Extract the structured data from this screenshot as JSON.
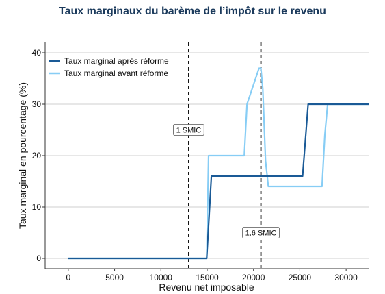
{
  "chart_data": {
    "type": "line",
    "title": "Taux marginaux du barème de l’impôt sur le revenu",
    "xlabel": "Revenu net imposable",
    "ylabel": "Taux marginal en pourcentage (%)",
    "xlim": [
      -2500,
      32500
    ],
    "ylim": [
      -2,
      42
    ],
    "xticks": [
      0,
      5000,
      10000,
      15000,
      20000,
      25000,
      30000
    ],
    "yticks": [
      0,
      10,
      20,
      30,
      40
    ],
    "grid": "horizontal",
    "legend_position": "top-left",
    "series": [
      {
        "name": "Taux marginal après réforme",
        "color": "#1a5a96",
        "x": [
          0,
          14950,
          15450,
          25300,
          25900,
          32500
        ],
        "y": [
          0,
          0,
          16,
          16,
          30,
          30
        ]
      },
      {
        "name": "Taux marginal avant réforme",
        "color": "#87cdf5",
        "x": [
          0,
          14950,
          15150,
          19000,
          19300,
          20600,
          20800,
          21000,
          21300,
          21600,
          27400,
          27700,
          28000,
          32500
        ],
        "y": [
          0,
          0,
          20,
          20,
          30,
          37,
          37,
          33,
          19,
          14,
          14,
          24,
          30,
          30
        ]
      }
    ],
    "annotations": [
      {
        "label": "1 SMIC",
        "x": 13000,
        "label_y": 25
      },
      {
        "label": "1,6 SMIC",
        "x": 20800,
        "label_y": 5
      }
    ]
  }
}
